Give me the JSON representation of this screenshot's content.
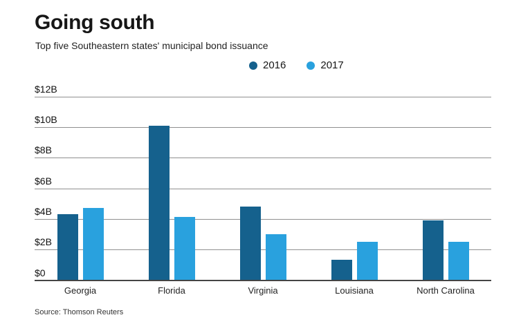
{
  "header": {
    "title": "Going south",
    "subtitle": "Top five Southeastern states' municipal bond issuance"
  },
  "chart_data": {
    "type": "bar",
    "title": "Going south",
    "subtitle": "Top five Southeastern states' municipal bond issuance",
    "categories": [
      "Georgia",
      "Florida",
      "Virginia",
      "Louisiana",
      "North Carolina"
    ],
    "series": [
      {
        "name": "2016",
        "color": "#15618d",
        "values": [
          4.3,
          10.1,
          4.8,
          1.3,
          3.9
        ]
      },
      {
        "name": "2017",
        "color": "#29a1de",
        "values": [
          4.7,
          4.1,
          3.0,
          2.5,
          2.5
        ]
      }
    ],
    "ylim": [
      0,
      12
    ],
    "yticks": [
      {
        "label": "$12B",
        "value": 12
      },
      {
        "label": "$10B",
        "value": 10
      },
      {
        "label": "$8B",
        "value": 8
      },
      {
        "label": "$6B",
        "value": 6
      },
      {
        "label": "$4B",
        "value": 4
      },
      {
        "label": "$2B",
        "value": 2
      },
      {
        "label": "$0",
        "value": 0
      }
    ],
    "grid": true,
    "legend_position": "top-center"
  },
  "footer": {
    "source": "Source: Thomson Reuters"
  }
}
